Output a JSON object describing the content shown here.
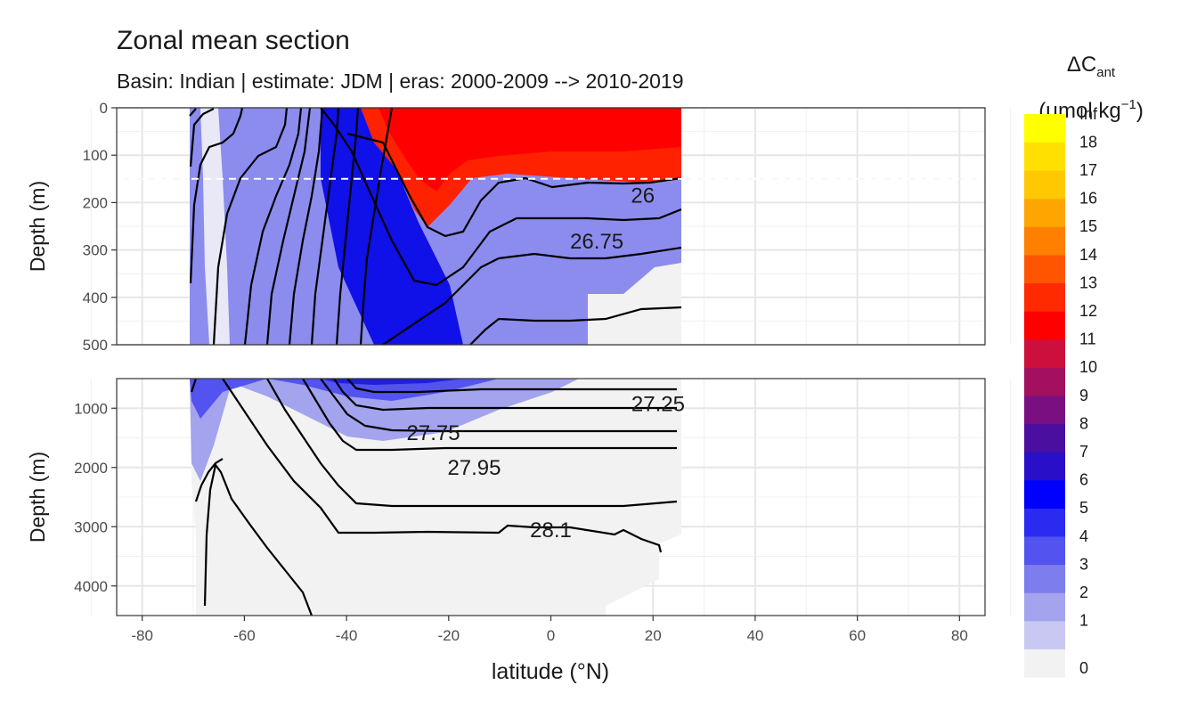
{
  "chart_data": {
    "type": "heatmap",
    "title": "Zonal mean section",
    "subtitle": "Basin: Indian | estimate: JDM  | eras: 2000-2009 --> 2010-2019",
    "xlabel": "latitude (°N)",
    "ylabel": "Depth (m)",
    "xlim": [
      -85,
      85
    ],
    "x_ticks": [
      -80,
      -60,
      -40,
      -20,
      0,
      20,
      40,
      60,
      80
    ],
    "grid": true,
    "legend_position": "right",
    "legend": {
      "title_main": "ΔC",
      "title_sub": "ant",
      "unit_main": "(μmol kg",
      "unit_sup": "−1",
      "unit_end": ")",
      "levels": [
        "0",
        "1",
        "2",
        "3",
        "4",
        "5",
        "6",
        "7",
        "8",
        "9",
        "10",
        "11",
        "12",
        "13",
        "14",
        "15",
        "16",
        "17",
        "18",
        "Inf"
      ],
      "colors": [
        "#f2f2f2",
        "#c8c8f2",
        "#a3a3ee",
        "#7d7ded",
        "#5353f0",
        "#2a2af0",
        "#0000ff",
        "#2a0fc8",
        "#4b0f9f",
        "#7a0f82",
        "#a3105f",
        "#cc0f3c",
        "#ff0000",
        "#ff2a00",
        "#ff5500",
        "#ff7f00",
        "#ffa500",
        "#ffc800",
        "#ffe000",
        "#ffff00"
      ]
    },
    "reference_line": {
      "depth": 150,
      "style": "dashed",
      "color": "#ffffff"
    },
    "upper_panel": {
      "ylim": [
        0,
        500
      ],
      "y_ticks": [
        0,
        100,
        200,
        300,
        400,
        500
      ],
      "data_lat_range": [
        -70,
        25
      ],
      "contour_labels": [
        {
          "text": "26",
          "lat": 18,
          "depth": 185
        },
        {
          "text": "26.75",
          "lat": 9,
          "depth": 282
        }
      ]
    },
    "lower_panel": {
      "ylim": [
        500,
        4500
      ],
      "y_ticks": [
        1000,
        2000,
        3000,
        4000
      ],
      "data_lat_range": [
        -70,
        25
      ],
      "contour_labels": [
        {
          "text": "27.25",
          "lat": 21,
          "depth": 930
        },
        {
          "text": "27.75",
          "lat": -23,
          "depth": 1420
        },
        {
          "text": "27.95",
          "lat": -15,
          "depth": 2000
        },
        {
          "text": "28.1",
          "lat": 0,
          "depth": 3060
        }
      ]
    }
  }
}
